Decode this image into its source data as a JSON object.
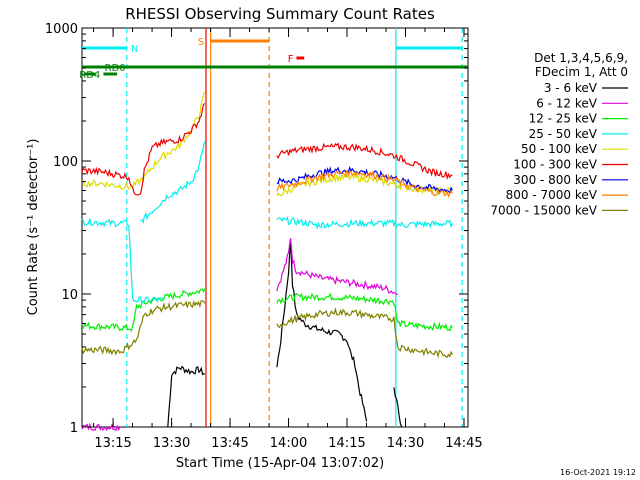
{
  "chart_data": {
    "type": "line",
    "title": "RHESSI Observing Summary Count Rates",
    "xlabel": "Start Time (15-Apr-04 13:07:02)",
    "ylabel": "Count Rate (s⁻¹ detector⁻¹)",
    "yscale": "log",
    "ylim": [
      1,
      1000
    ],
    "xlim_minutes": [
      0,
      99
    ],
    "y_ticks": [
      1,
      10,
      100,
      1000
    ],
    "y_tick_labels": [
      "1",
      "10",
      "100",
      "1000"
    ],
    "x_ticks": [
      "13:15",
      "13:30",
      "13:45",
      "14:00",
      "14:15",
      "14:30",
      "14:45"
    ],
    "x_tick_minutes": [
      7.97,
      22.97,
      37.97,
      52.97,
      67.97,
      82.97,
      97.97
    ],
    "timestamp": "16-Oct-2021 19:12",
    "legend_header": [
      "Det 1,3,4,5,6,9,",
      "FDecim 1, Att 0"
    ],
    "legend_placement": "right",
    "series": [
      {
        "name": "3 - 6 keV",
        "color": "#000000",
        "segments": [
          [
            [
              22,
              1.0
            ],
            [
              23,
              2.5
            ],
            [
              25,
              2.8
            ],
            [
              28,
              2.6
            ],
            [
              30,
              2.7
            ],
            [
              31.5,
              2.5
            ]
          ],
          [
            [
              50,
              2.8
            ],
            [
              51,
              4.5
            ],
            [
              52,
              8
            ],
            [
              53,
              15
            ],
            [
              53.5,
              25
            ],
            [
              54,
              12
            ],
            [
              55,
              7
            ],
            [
              57,
              6
            ],
            [
              60,
              5.5
            ],
            [
              63,
              5.2
            ],
            [
              66,
              5
            ],
            [
              68,
              4.5
            ],
            [
              69,
              3.5
            ],
            [
              70,
              3
            ],
            [
              71,
              2
            ],
            [
              72,
              1.5
            ],
            [
              73,
              1.1
            ]
          ],
          [
            [
              80,
              2.0
            ],
            [
              81,
              1.4
            ],
            [
              82,
              1.0
            ]
          ]
        ]
      },
      {
        "name": "6 - 12 keV",
        "color": "#e000e0",
        "segments": [
          [
            [
              0,
              1.0
            ],
            [
              5,
              1.0
            ],
            [
              10,
              1.0
            ]
          ],
          [
            [
              50,
              11
            ],
            [
              51,
              13
            ],
            [
              52,
              16
            ],
            [
              53,
              20
            ],
            [
              53.5,
              27
            ],
            [
              54,
              18
            ],
            [
              55,
              15
            ],
            [
              58,
              14
            ],
            [
              62,
              13
            ],
            [
              66,
              12.5
            ],
            [
              70,
              12
            ],
            [
              74,
              11.5
            ],
            [
              78,
              11
            ],
            [
              81,
              10
            ]
          ]
        ]
      },
      {
        "name": "12 - 25 keV",
        "color": "#00ee00",
        "segments": [
          [
            [
              0,
              5.8
            ],
            [
              5,
              5.7
            ],
            [
              10,
              5.6
            ],
            [
              13,
              5.5
            ],
            [
              14,
              8
            ],
            [
              18,
              9
            ],
            [
              22,
              9.5
            ],
            [
              26,
              10
            ],
            [
              30,
              10.5
            ],
            [
              31.5,
              11
            ]
          ],
          [
            [
              50,
              9
            ],
            [
              55,
              9.5
            ],
            [
              60,
              9.5
            ],
            [
              65,
              9.5
            ],
            [
              70,
              9.3
            ],
            [
              75,
              9
            ],
            [
              80,
              8.8
            ],
            [
              81,
              6
            ],
            [
              85,
              5.8
            ],
            [
              90,
              5.7
            ],
            [
              95,
              5.6
            ]
          ]
        ]
      },
      {
        "name": "25 - 50 keV",
        "color": "#00eeee",
        "segments": [
          [
            [
              0,
              35
            ],
            [
              5,
              34.5
            ],
            [
              8,
              34
            ],
            [
              10,
              34
            ],
            [
              12,
              34
            ],
            [
              13,
              9
            ],
            [
              16,
              9
            ],
            [
              18,
              9
            ],
            [
              20,
              9
            ],
            [
              21,
              9
            ]
          ],
          [
            [
              15,
              35
            ],
            [
              18,
              42
            ],
            [
              20,
              48
            ],
            [
              22,
              55
            ],
            [
              25,
              60
            ],
            [
              28,
              70
            ],
            [
              30,
              90
            ],
            [
              31.5,
              140
            ]
          ],
          [
            [
              50,
              36
            ],
            [
              55,
              35
            ],
            [
              58,
              34
            ],
            [
              60,
              33
            ],
            [
              65,
              33.5
            ],
            [
              70,
              34
            ],
            [
              75,
              34
            ],
            [
              80,
              34
            ],
            [
              82,
              33
            ],
            [
              86,
              33.5
            ],
            [
              90,
              33.5
            ],
            [
              95,
              34
            ]
          ]
        ]
      },
      {
        "name": "50 - 100 keV",
        "color": "#dddd00",
        "segments": [
          [
            [
              0,
              68
            ],
            [
              5,
              68
            ],
            [
              8,
              66
            ],
            [
              10,
              65
            ],
            [
              12,
              64
            ],
            [
              13,
              64
            ],
            [
              14,
              68
            ],
            [
              16,
              75
            ],
            [
              18,
              90
            ],
            [
              20,
              105
            ],
            [
              22,
              115
            ],
            [
              25,
              130
            ],
            [
              28,
              170
            ],
            [
              30,
              220
            ],
            [
              31.5,
              330
            ]
          ],
          [
            [
              50,
              55
            ],
            [
              53,
              60
            ],
            [
              56,
              66
            ],
            [
              60,
              70
            ],
            [
              65,
              75
            ],
            [
              70,
              75
            ],
            [
              75,
              72
            ],
            [
              80,
              67
            ],
            [
              85,
              62
            ],
            [
              90,
              60
            ],
            [
              95,
              60
            ]
          ]
        ]
      },
      {
        "name": "100 - 300 keV",
        "color": "#ee0000",
        "segments": [
          [
            [
              0,
              85
            ],
            [
              5,
              83
            ],
            [
              8,
              80
            ],
            [
              10,
              78
            ],
            [
              12,
              76
            ],
            [
              13,
              60
            ],
            [
              14,
              58
            ],
            [
              15,
              58
            ],
            [
              16,
              85
            ],
            [
              18,
              125
            ],
            [
              20,
              135
            ],
            [
              22,
              140
            ],
            [
              25,
              145
            ],
            [
              28,
              170
            ],
            [
              30,
              200
            ],
            [
              31.5,
              270
            ]
          ],
          [
            [
              50,
              110
            ],
            [
              52,
              115
            ],
            [
              55,
              120
            ],
            [
              60,
              125
            ],
            [
              65,
              128
            ],
            [
              70,
              127
            ],
            [
              75,
              120
            ],
            [
              80,
              110
            ],
            [
              85,
              95
            ],
            [
              90,
              82
            ],
            [
              95,
              78
            ]
          ]
        ]
      },
      {
        "name": "300 - 800 keV",
        "color": "#0000ee",
        "segments": [
          [
            [
              50,
              70
            ],
            [
              55,
              72
            ],
            [
              60,
              80
            ],
            [
              65,
              85
            ],
            [
              70,
              85
            ],
            [
              75,
              80
            ],
            [
              80,
              75
            ],
            [
              85,
              66
            ],
            [
              90,
              62
            ],
            [
              95,
              60
            ]
          ]
        ]
      },
      {
        "name": "800 - 7000 keV",
        "color": "#ff8000",
        "segments": [
          [
            [
              50,
              62
            ],
            [
              55,
              68
            ],
            [
              60,
              75
            ],
            [
              65,
              80
            ],
            [
              70,
              82
            ],
            [
              75,
              78
            ],
            [
              80,
              72
            ],
            [
              85,
              63
            ],
            [
              90,
              58
            ],
            [
              95,
              57
            ]
          ]
        ]
      },
      {
        "name": "7000 - 15000 keV",
        "color": "#808000",
        "segments": [
          [
            [
              0,
              3.8
            ],
            [
              5,
              3.8
            ],
            [
              10,
              3.7
            ],
            [
              14,
              4.5
            ],
            [
              16,
              7
            ],
            [
              18,
              7.5
            ],
            [
              20,
              7.8
            ],
            [
              22,
              8
            ],
            [
              25,
              8.2
            ],
            [
              28,
              8.3
            ],
            [
              31.5,
              8.5
            ]
          ],
          [
            [
              50,
              5.8
            ],
            [
              55,
              6.5
            ],
            [
              60,
              7
            ],
            [
              65,
              7.3
            ],
            [
              70,
              7.2
            ],
            [
              75,
              6.8
            ],
            [
              80,
              6.5
            ],
            [
              81,
              4
            ],
            [
              85,
              3.8
            ],
            [
              90,
              3.6
            ],
            [
              95,
              3.5
            ]
          ]
        ]
      }
    ],
    "vertical_markers": [
      {
        "minutes": 11.5,
        "color": "#00eeee",
        "style": "dashed"
      },
      {
        "minutes": 31.8,
        "color": "#ee0000",
        "style": "solid"
      },
      {
        "minutes": 33.0,
        "color": "#ff8000",
        "style": "solid"
      },
      {
        "minutes": 48.0,
        "color": "#ff8000",
        "style": "dashed"
      },
      {
        "minutes": 80.5,
        "color": "#00eeee",
        "style": "solid"
      },
      {
        "minutes": 97.5,
        "color": "#00eeee",
        "style": "dashed"
      }
    ],
    "flags": [
      {
        "label": "N",
        "color": "#00eeee",
        "segments": [
          [
            0,
            11.5
          ],
          [
            80.5,
            97.5
          ]
        ],
        "label_minutes": 13.5,
        "level": 1
      },
      {
        "label": "S",
        "color": "#ff8000",
        "segments": [
          [
            33,
            48
          ]
        ],
        "label_minutes": 30.5,
        "level": 2
      },
      {
        "label": "F",
        "color": "#ee0000",
        "segments": [
          [
            55,
            57
          ]
        ],
        "label_minutes": 53.5,
        "level": 3
      },
      {
        "label": "RD0",
        "color": "#008000",
        "segments": [
          [
            0,
            99
          ]
        ],
        "label_minutes": 8.5,
        "level": 4
      },
      {
        "label": "RD4",
        "color": "#008000",
        "segments": [
          [
            0.5,
            3.5
          ],
          [
            5.5,
            9.0
          ]
        ],
        "label_minutes": 2.0,
        "level": 5
      }
    ]
  }
}
